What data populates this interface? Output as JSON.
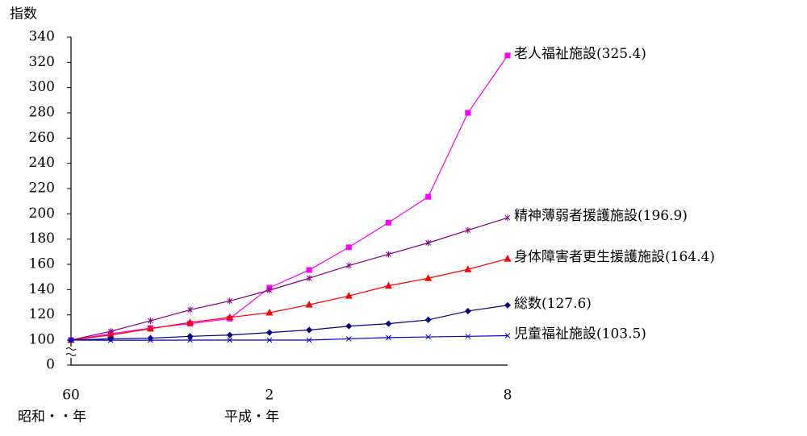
{
  "chart_data": {
    "type": "line",
    "y_axis_label": "指数",
    "categories": [
      "60",
      null,
      null,
      null,
      null,
      "2",
      null,
      null,
      null,
      null,
      null,
      "8"
    ],
    "x_era_labels": [
      "昭和・・年",
      "平成・年"
    ],
    "ylim": [
      0,
      340
    ],
    "ybreak": [
      0,
      100
    ],
    "yticks": [
      0,
      100,
      120,
      140,
      160,
      180,
      200,
      220,
      240,
      260,
      280,
      300,
      320,
      340
    ],
    "series": [
      {
        "name": "老人福祉施設",
        "end_label": "(325.4)",
        "color": "#ff00ff",
        "marker": "square",
        "values": [
          100,
          105,
          109.5,
          113,
          117,
          141.5,
          155.5,
          173.5,
          193,
          213.5,
          280,
          325.4
        ]
      },
      {
        "name": "精神薄弱者援護施設",
        "end_label": "(196.9)",
        "color": "#800080",
        "marker": "star",
        "values": [
          100,
          107,
          115.3,
          124,
          131,
          139.5,
          149,
          159,
          168,
          177,
          187,
          196.9
        ]
      },
      {
        "name": "身体障害者更生援護施設",
        "end_label": "(164.4)",
        "color": "#ff0000",
        "marker": "triangle",
        "values": [
          100,
          104,
          109,
          114,
          118,
          121.7,
          128,
          135,
          143,
          149,
          156,
          164.4
        ]
      },
      {
        "name": "総数",
        "end_label": "(127.6)",
        "color": "#000080",
        "marker": "diamond",
        "values": [
          100,
          101,
          101.5,
          103,
          104,
          106,
          108,
          111,
          113,
          116,
          123,
          127.6
        ]
      },
      {
        "name": "児童福祉施設",
        "end_label": "(103.5)",
        "color": "#0000cc",
        "marker": "cross",
        "values": [
          100,
          99.5,
          99.5,
          100,
          100,
          100,
          100,
          101,
          102,
          102.5,
          103,
          103.5
        ]
      }
    ]
  }
}
